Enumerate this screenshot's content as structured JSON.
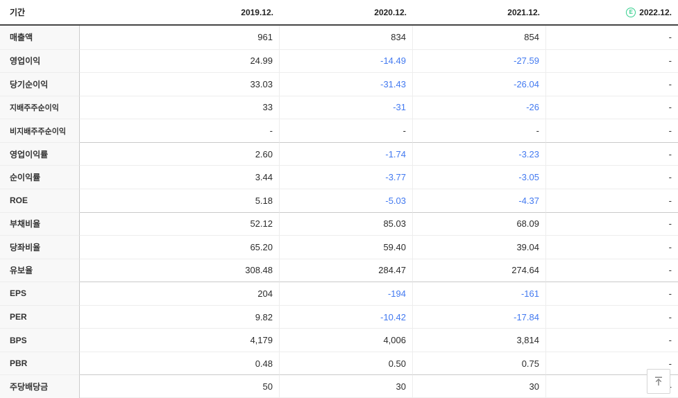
{
  "table": {
    "header": {
      "period_label": "기간",
      "columns": [
        "2019.12.",
        "2020.12.",
        "2021.12.",
        "2022.12."
      ],
      "estimate_badge": "E"
    },
    "rows": [
      {
        "label": "매출액",
        "small": false,
        "group_start": false,
        "values": [
          "961",
          "834",
          "854",
          "-"
        ]
      },
      {
        "label": "영업이익",
        "small": false,
        "group_start": false,
        "values": [
          "24.99",
          "-14.49",
          "-27.59",
          "-"
        ]
      },
      {
        "label": "당기순이익",
        "small": false,
        "group_start": false,
        "values": [
          "33.03",
          "-31.43",
          "-26.04",
          "-"
        ]
      },
      {
        "label": "지배주주순이익",
        "small": true,
        "group_start": false,
        "values": [
          "33",
          "-31",
          "-26",
          "-"
        ]
      },
      {
        "label": "비지배주주순이익",
        "small": true,
        "group_start": false,
        "values": [
          "-",
          "-",
          "-",
          "-"
        ]
      },
      {
        "label": "영업이익률",
        "small": false,
        "group_start": true,
        "values": [
          "2.60",
          "-1.74",
          "-3.23",
          "-"
        ]
      },
      {
        "label": "순이익률",
        "small": false,
        "group_start": false,
        "values": [
          "3.44",
          "-3.77",
          "-3.05",
          "-"
        ]
      },
      {
        "label": "ROE",
        "small": false,
        "group_start": false,
        "values": [
          "5.18",
          "-5.03",
          "-4.37",
          "-"
        ]
      },
      {
        "label": "부채비율",
        "small": false,
        "group_start": true,
        "values": [
          "52.12",
          "85.03",
          "68.09",
          "-"
        ]
      },
      {
        "label": "당좌비율",
        "small": false,
        "group_start": false,
        "values": [
          "65.20",
          "59.40",
          "39.04",
          "-"
        ]
      },
      {
        "label": "유보율",
        "small": false,
        "group_start": false,
        "values": [
          "308.48",
          "284.47",
          "274.64",
          "-"
        ]
      },
      {
        "label": "EPS",
        "small": false,
        "group_start": true,
        "values": [
          "204",
          "-194",
          "-161",
          "-"
        ]
      },
      {
        "label": "PER",
        "small": false,
        "group_start": false,
        "values": [
          "9.82",
          "-10.42",
          "-17.84",
          "-"
        ]
      },
      {
        "label": "BPS",
        "small": false,
        "group_start": false,
        "values": [
          "4,179",
          "4,006",
          "3,814",
          "-"
        ]
      },
      {
        "label": "PBR",
        "small": false,
        "group_start": false,
        "values": [
          "0.48",
          "0.50",
          "0.75",
          "-"
        ]
      },
      {
        "label": "주당배당금",
        "small": false,
        "group_start": true,
        "values": [
          "50",
          "30",
          "30",
          "-"
        ]
      }
    ]
  },
  "colors": {
    "negative_value": "#4279f0",
    "estimate_badge": "#35cf8e",
    "header_border": "#444444",
    "label_column_bg": "#f8f8f8",
    "group_separator": "#c9c9c9"
  },
  "scroll_top_button": {
    "icon": "arrow-up-to-line"
  }
}
